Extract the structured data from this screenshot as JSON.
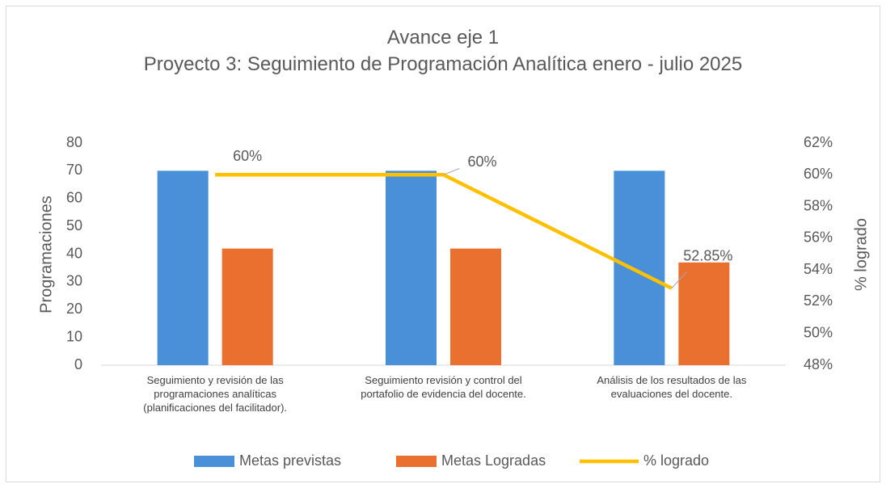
{
  "chart_data": {
    "type": "bar_line",
    "title": "Avance eje 1",
    "subtitle": "Proyecto 3: Seguimiento de Programación Analítica enero - julio 2025",
    "y_label": "Programaciones",
    "y2_label": "% logrado",
    "categories": [
      "Seguimiento y revisión de las programaciones analíticas (planificaciones del facilitador).",
      "Seguimiento revisión y control del portafolio de evidencia del docente.",
      "Análisis de los resultados de las evaluaciones del docente."
    ],
    "series": [
      {
        "name": "Metas previstas",
        "type": "bar",
        "color": "#4a90d9",
        "values": [
          70,
          70,
          70
        ]
      },
      {
        "name": "Metas Logradas",
        "type": "bar",
        "color": "#ea7030",
        "values": [
          42,
          42,
          37
        ]
      },
      {
        "name": "% logrado",
        "type": "line",
        "axis": "y2",
        "color": "#ffc000",
        "values": [
          60,
          60,
          52.85
        ],
        "value_labels": [
          "60%",
          "60%",
          "52.85%"
        ]
      }
    ],
    "ylim": [
      0,
      80
    ],
    "yticks": [
      0,
      10,
      20,
      30,
      40,
      50,
      60,
      70,
      80
    ],
    "y2lim": [
      48,
      62
    ],
    "y2ticks": [
      {
        "value": 48,
        "label": "48%"
      },
      {
        "value": 50,
        "label": "50%"
      },
      {
        "value": 52,
        "label": "52%"
      },
      {
        "value": 54,
        "label": "54%"
      },
      {
        "value": 56,
        "label": "56%"
      },
      {
        "value": 58,
        "label": "58%"
      },
      {
        "value": 60,
        "label": "60%"
      },
      {
        "value": 62,
        "label": "62%"
      }
    ],
    "grid": false,
    "legend": "bottom"
  }
}
